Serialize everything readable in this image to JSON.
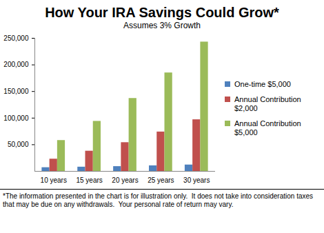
{
  "chart_data": {
    "type": "bar",
    "title": "How Your IRA Savings Could Grow*",
    "subtitle": "Assumes 3% Growth",
    "footnote": "*The information presented in the chart is for illustration only.  It does not take into consideration taxes that may be due on any withdrawals.  Your personal rate of return may vary.",
    "categories": [
      "10 years",
      "15 years",
      "20 years",
      "25 years",
      "30 years"
    ],
    "series": [
      {
        "name": "One-time $5,000",
        "color": "#4f81bd",
        "values": [
          7000,
          8000,
          9000,
          10500,
          12000
        ]
      },
      {
        "name": "Annual Contribution $2,000",
        "color": "#c0504d",
        "values": [
          23000,
          38000,
          54000,
          74000,
          97000
        ]
      },
      {
        "name": "Annual Contribution $5,000",
        "color": "#9bbb59",
        "values": [
          58000,
          94000,
          137000,
          185000,
          243000
        ]
      }
    ],
    "ylim": [
      0,
      250000
    ],
    "yticks": [
      {
        "value": 50000,
        "label": "50,000"
      },
      {
        "value": 100000,
        "label": "100,000"
      },
      {
        "value": 150000,
        "label": "150,000"
      },
      {
        "value": 200000,
        "label": "200,000"
      },
      {
        "value": 250000,
        "label": "250,000"
      }
    ],
    "grid": false,
    "legend": "right"
  }
}
